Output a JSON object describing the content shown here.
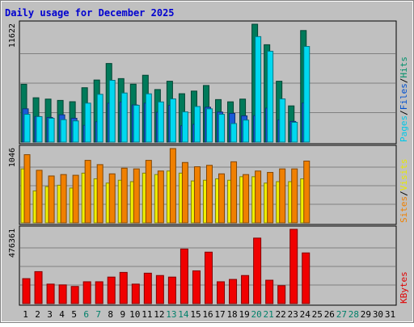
{
  "chart_data": {
    "type": "bar",
    "title": "Daily usage for December 2025",
    "days": [
      "1",
      "2",
      "3",
      "4",
      "5",
      "6",
      "7",
      "8",
      "9",
      "10",
      "11",
      "12",
      "13",
      "14",
      "15",
      "16",
      "17",
      "18",
      "19",
      "20",
      "21",
      "22",
      "23",
      "24",
      "25",
      "26",
      "27",
      "28",
      "29",
      "30",
      "31"
    ],
    "weekend_days": [
      6,
      7,
      13,
      14,
      20,
      21,
      27,
      28
    ],
    "panels": [
      {
        "name": "traffic-hits",
        "max_label": "11622",
        "ymax": 11622,
        "legend": [
          "Pages",
          "Files",
          "Hits"
        ],
        "legend_colors": [
          "#00c8e8",
          "#0050d0",
          "#00906a"
        ],
        "series": [
          {
            "name": "Hits",
            "color": "#007a5a",
            "values": [
              5700,
              4370,
              4240,
              4110,
              3980,
              5360,
              6120,
              7750,
              6260,
              5710,
              6590,
              5180,
              6000,
              4770,
              5030,
              5580,
              4190,
              3970,
              4240,
              11622,
              9600,
              6000,
              3570,
              11000,
              0,
              0,
              0,
              0,
              0,
              0,
              0
            ]
          },
          {
            "name": "Files",
            "color": "#1a5ad8",
            "values": [
              3280,
              2520,
              2430,
              2690,
              2350,
              1650,
              2010,
              3840,
              3950,
              3660,
              3840,
              2940,
              3620,
              1620,
              1750,
              3440,
              2960,
              2830,
              2590,
              2610,
              3350,
              2190,
              2040,
              3850,
              0,
              0,
              0,
              0,
              0,
              0,
              0
            ]
          },
          {
            "name": "Pages",
            "color": "#00d8f0",
            "values": [
              2740,
              2510,
              2350,
              2210,
              2090,
              3840,
              4710,
              6090,
              4840,
              3630,
              4760,
              3960,
              4260,
              2980,
              3510,
              3280,
              2740,
              1830,
              2170,
              10400,
              8960,
              4260,
              1950,
              9430,
              0,
              0,
              0,
              0,
              0,
              0,
              0
            ]
          }
        ]
      },
      {
        "name": "traffic-sites",
        "max_label": "1046",
        "ymax": 1046,
        "legend": [
          "Sites",
          "Visits"
        ],
        "legend_colors": [
          "#f08000",
          "#e8e800"
        ],
        "series": [
          {
            "name": "Visits",
            "color": "#f0f000",
            "values": [
              760,
              450,
              510,
              530,
              490,
              700,
              620,
              560,
              600,
              580,
              700,
              680,
              730,
              700,
              590,
              600,
              620,
              600,
              650,
              650,
              560,
              580,
              580,
              620,
              0,
              0,
              0,
              0,
              0,
              0,
              0
            ]
          },
          {
            "name": "Sites",
            "color": "#f08000",
            "values": [
              960,
              740,
              660,
              680,
              670,
              880,
              820,
              690,
              770,
              760,
              880,
              730,
              1046,
              850,
              790,
              810,
              690,
              860,
              680,
              730,
              710,
              760,
              760,
              870,
              0,
              0,
              0,
              0,
              0,
              0,
              0
            ]
          }
        ]
      },
      {
        "name": "traffic-kbytes",
        "max_label": "476361",
        "ymax": 476361,
        "legend": [
          "KBytes"
        ],
        "legend_colors": [
          "#e00000"
        ],
        "series": [
          {
            "name": "KBytes",
            "color": "#f00000",
            "values": [
              160000,
              205000,
              125000,
              120000,
              110000,
              140000,
              140000,
              170000,
              200000,
              125000,
              195000,
              180000,
              170000,
              350000,
              210000,
              330000,
              140000,
              155000,
              180000,
              420000,
              150000,
              115000,
              476361,
              325000,
              0,
              0,
              0,
              0,
              0,
              0,
              0
            ]
          }
        ]
      }
    ],
    "grid": true,
    "legend_placement": "right"
  }
}
